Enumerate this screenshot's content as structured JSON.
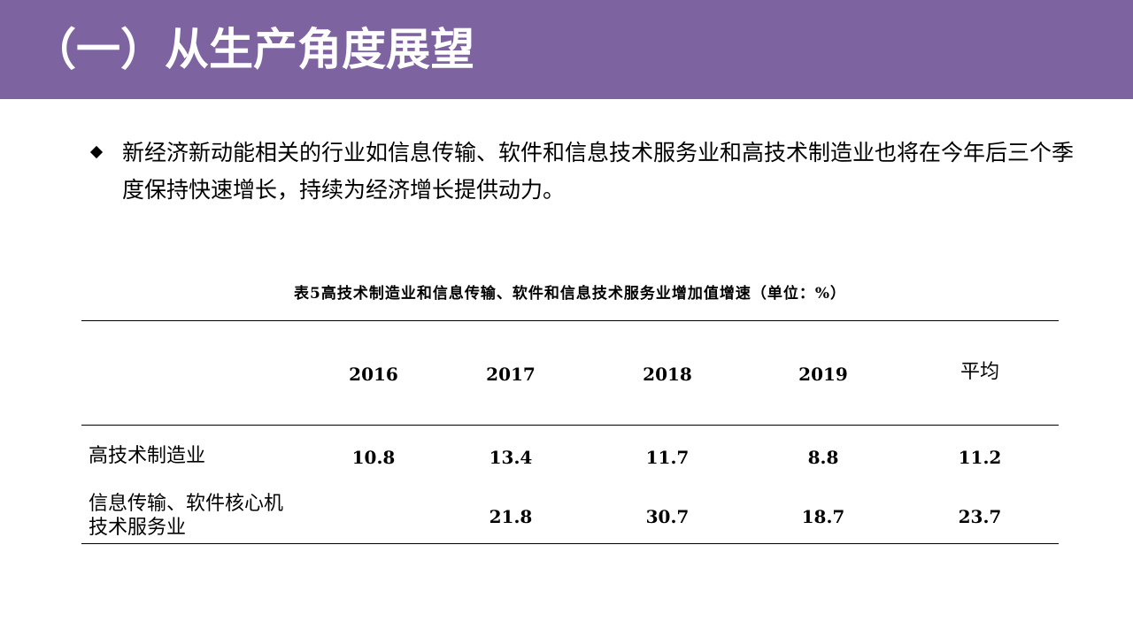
{
  "header": {
    "title": "（一）从生产角度展望"
  },
  "bullet": {
    "text": "新经济新动能相关的行业如信息传输、软件和信息技术服务业和高技术制造业也将在今年后三个季度保持快速增长，持续为经济增长提供动力。"
  },
  "table": {
    "caption": "表5高技术制造业和信息传输、软件和信息技术服务业增加值增速（单位：%）",
    "columns": [
      "2016",
      "2017",
      "2018",
      "2019",
      "平均"
    ],
    "rows": [
      {
        "label": "高技术制造业",
        "values": [
          "10.8",
          "13.4",
          "11.7",
          "8.8",
          "11.2"
        ]
      },
      {
        "label_line1": "信息传输、软件核心机",
        "label_line2": "技术服务业",
        "values": [
          "",
          "21.8",
          "30.7",
          "18.7",
          "23.7"
        ]
      }
    ]
  },
  "colors": {
    "header_bg": "#7e63a1",
    "header_text": "#ffffff",
    "text": "#000000"
  }
}
